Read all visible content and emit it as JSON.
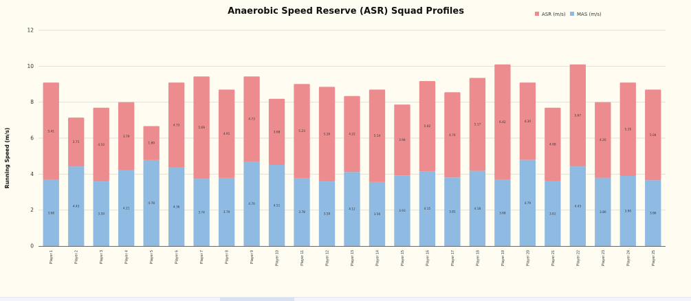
{
  "chart_data": {
    "type": "bar",
    "stacked": true,
    "title": "Anaerobic Speed Reserve (ASR) Squad Profiles",
    "xlabel": "",
    "ylabel": "Running Speed (m/s)",
    "ylim": [
      0,
      12
    ],
    "yticks": [
      0,
      2,
      4,
      6,
      8,
      10,
      12
    ],
    "grid": true,
    "legend_position": "top-right",
    "categories": [
      "Player 1",
      "Player 2",
      "Player 3",
      "Player 4",
      "Player 5",
      "Player 6",
      "Player 7",
      "Player 8",
      "Player 9",
      "Player 10",
      "Player 11",
      "Player 12",
      "Player 13",
      "Player 14",
      "Player 15",
      "Player 16",
      "Player 17",
      "Player 18",
      "Player 19",
      "Player 20",
      "Player 21",
      "Player 22",
      "Player 23",
      "Player 24",
      "Player 25"
    ],
    "series": [
      {
        "name": "MAS (m/s)",
        "color": "#8fbbe3",
        "values": [
          3.68,
          4.43,
          3.59,
          4.21,
          4.78,
          4.36,
          3.74,
          3.79,
          4.7,
          4.51,
          3.78,
          3.59,
          4.12,
          3.56,
          3.93,
          4.15,
          3.81,
          4.18,
          3.68,
          4.79,
          3.61,
          4.43,
          3.8,
          3.9,
          3.66
        ],
        "labels": [
          "3.68",
          "4.43",
          "3.59",
          "4.21",
          "4.78",
          "4.36",
          "3.74",
          "3.79",
          "4.70",
          "4.51",
          "3.78",
          "3.59",
          "4.12",
          "3.56",
          "3.93",
          "4.15",
          "3.81",
          "4.18",
          "3.68",
          "4.79",
          "3.61",
          "4.43",
          "3.80",
          "3.90",
          "3.66"
        ]
      },
      {
        "name": "ASR (m/s)",
        "color": "#ed8c8f",
        "values": [
          5.41,
          2.71,
          4.1,
          3.79,
          1.89,
          4.73,
          5.69,
          4.91,
          4.73,
          3.68,
          5.23,
          5.26,
          4.22,
          5.14,
          3.94,
          5.02,
          4.74,
          5.17,
          6.42,
          4.3,
          4.08,
          5.67,
          4.2,
          5.19,
          5.04
        ],
        "labels": [
          "5.41",
          "2.71",
          "4.10",
          "3.79",
          "1.89",
          "4.73",
          "5.69",
          "4.91",
          "4.73",
          "3.68",
          "5.23",
          "5.26",
          "4.22",
          "5.14",
          "3.94",
          "5.02",
          "4.74",
          "5.17",
          "6.42",
          "4.30",
          "4.08",
          "5.67",
          "4.20",
          "5.19",
          "5.04"
        ]
      }
    ],
    "legend": [
      {
        "name": "ASR (m/s)",
        "color": "#ed8c8f"
      },
      {
        "name": "MAS (m/s)",
        "color": "#8fbbe3"
      }
    ],
    "colors": {
      "background": "#fffdf1",
      "grid": "#e2e0d6",
      "axis": "#666666"
    }
  }
}
